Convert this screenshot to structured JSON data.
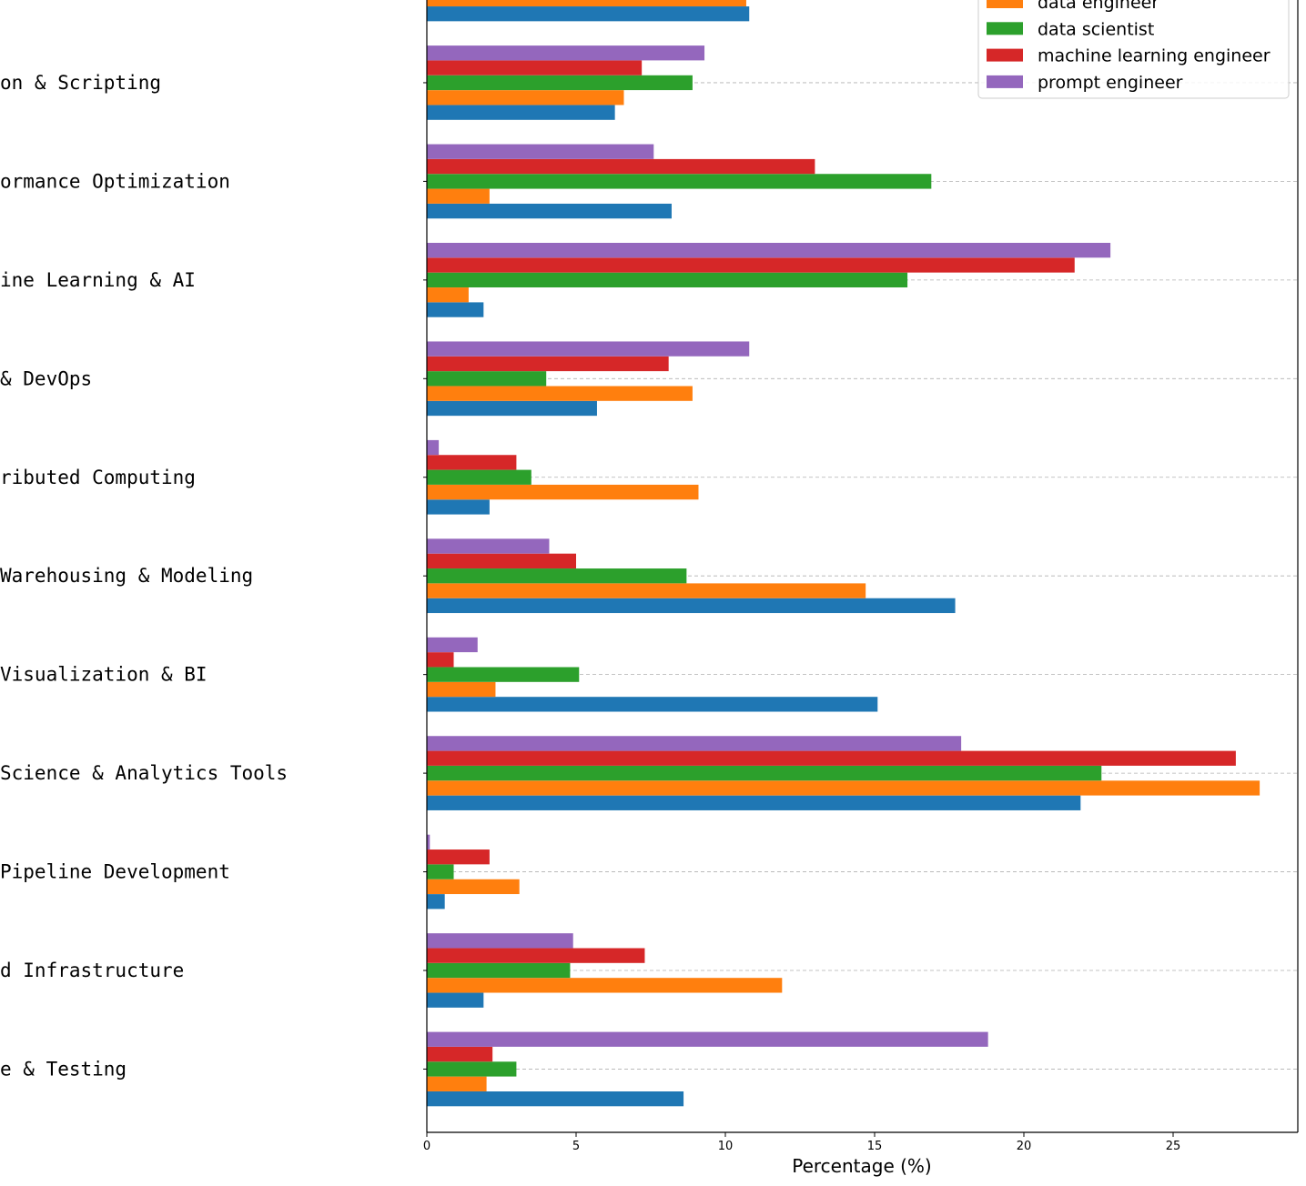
{
  "chart_data": {
    "type": "bar",
    "orientation": "horizontal",
    "xlabel": "Percentage (%)",
    "xlim": [
      0,
      29
    ],
    "xticks": [
      0,
      5,
      10,
      15,
      20,
      25
    ],
    "grid": "horizontal-dashed",
    "legend_position": "top-right",
    "categories": [
      "",
      "on & Scripting",
      "ormance Optimization",
      "ine Learning & AI",
      "& DevOps",
      "ributed Computing",
      " Warehousing & Modeling",
      " Visualization & BI",
      " Science & Analytics Tools",
      " Pipeline Development",
      "d Infrastructure",
      "e & Testing"
    ],
    "series": [
      {
        "name": "",
        "color": "#1f77b4",
        "values": [
          10.8,
          6.3,
          8.2,
          1.9,
          5.7,
          2.1,
          17.7,
          15.1,
          21.9,
          0.6,
          1.9,
          8.6
        ]
      },
      {
        "name": "data engineer",
        "color": "#ff7f0e",
        "values": [
          10.7,
          6.6,
          2.1,
          1.4,
          8.9,
          9.1,
          14.7,
          2.3,
          27.9,
          3.1,
          11.9,
          2.0
        ]
      },
      {
        "name": "data scientist",
        "color": "#2ca02c",
        "values": [
          null,
          8.9,
          16.9,
          16.1,
          4.0,
          3.5,
          8.7,
          5.1,
          22.6,
          0.9,
          4.8,
          3.0
        ]
      },
      {
        "name": "machine learning engineer",
        "color": "#d62728",
        "values": [
          null,
          7.2,
          13.0,
          21.7,
          8.1,
          3.0,
          5.0,
          0.9,
          27.1,
          2.1,
          7.3,
          2.2
        ]
      },
      {
        "name": "prompt engineer",
        "color": "#9467bd",
        "values": [
          null,
          9.3,
          7.6,
          22.9,
          10.8,
          0.4,
          4.1,
          1.7,
          17.9,
          0.1,
          4.9,
          18.8
        ]
      }
    ]
  }
}
